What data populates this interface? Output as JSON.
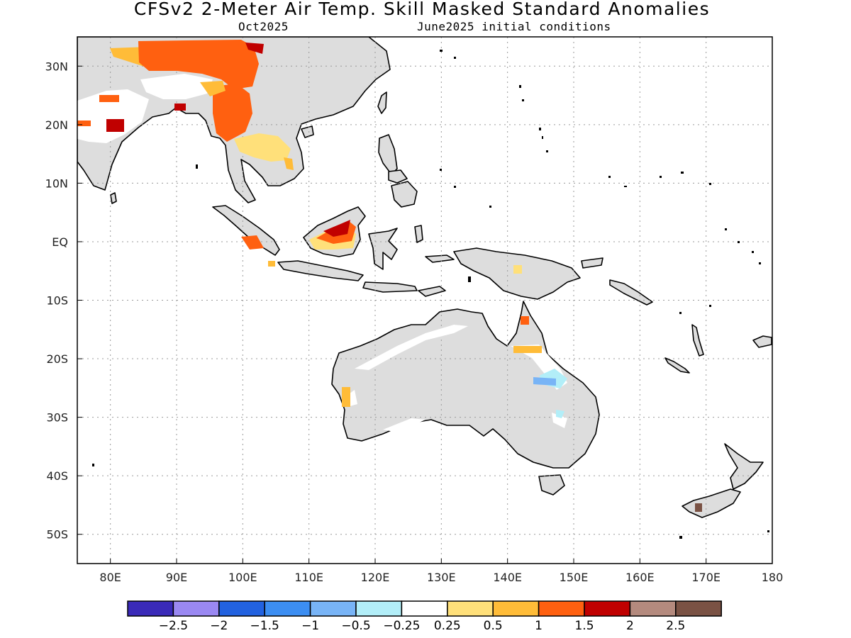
{
  "title": "CFSv2 2-Meter Air Temp. Skill Masked Standard Anomalies",
  "subtitle_left": "Oct2025",
  "subtitle_right": "June2025 initial conditions",
  "map": {
    "lon_range": [
      75,
      180
    ],
    "lat_range": [
      -55,
      35
    ],
    "lon_ticks": [
      "80E",
      "90E",
      "100E",
      "110E",
      "120E",
      "130E",
      "140E",
      "150E",
      "160E",
      "170E",
      "180"
    ],
    "lat_ticks": [
      "30N",
      "20N",
      "10N",
      "EQ",
      "10S",
      "20S",
      "30S",
      "40S",
      "50S"
    ],
    "grid": "dotted",
    "land_color": "#dddddd",
    "coast_color": "#000000"
  },
  "colorbar": {
    "colors": [
      "#3a2ab8",
      "#9a88f2",
      "#2262e0",
      "#3c8ef2",
      "#78b4f6",
      "#b2eef8",
      "#ffffff",
      "#ffe07a",
      "#ffbc38",
      "#ff6010",
      "#c00000",
      "#b48a7e",
      "#7a5244"
    ],
    "labels": [
      "-2.5",
      "-2",
      "-1.5",
      "-1",
      "-0.5",
      "-0.25",
      "0.25",
      "0.5",
      "1",
      "1.5",
      "2",
      "2.5"
    ]
  }
}
